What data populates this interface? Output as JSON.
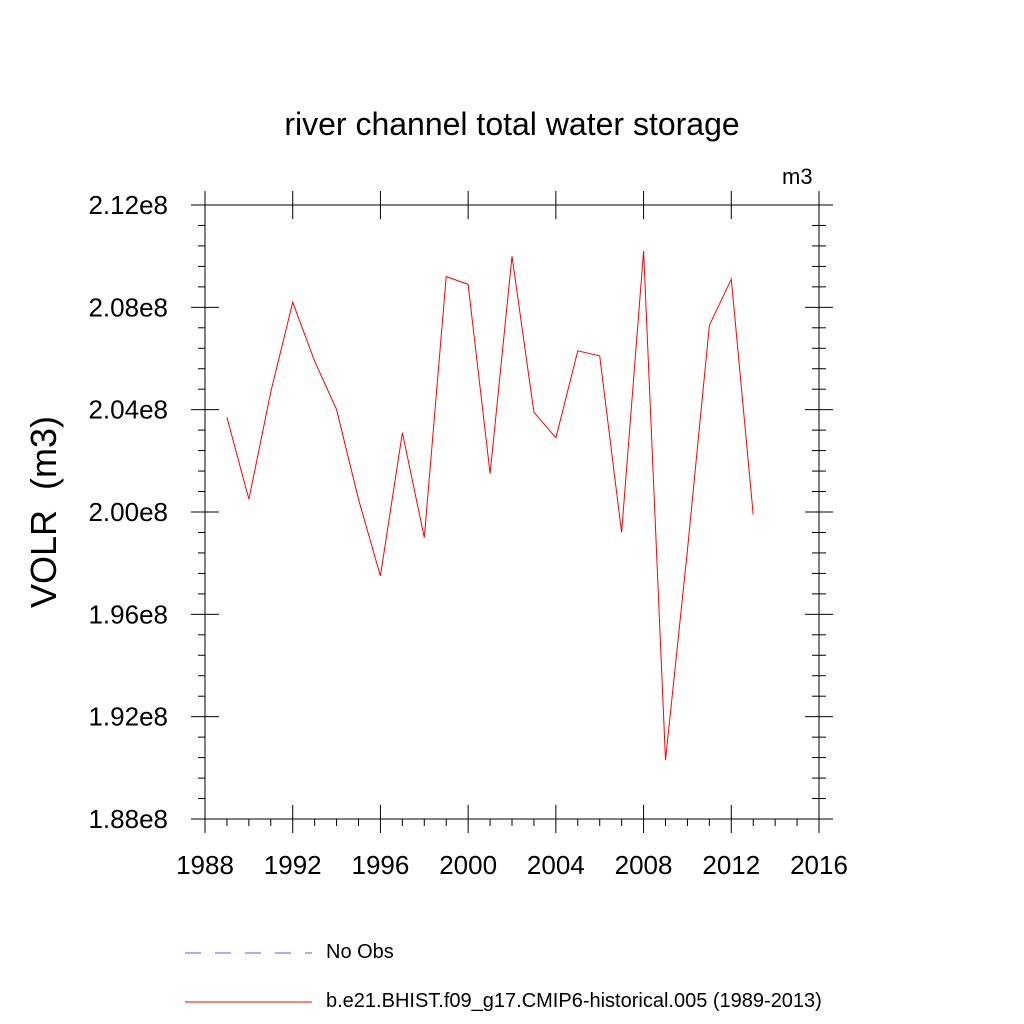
{
  "chart_data": {
    "type": "line",
    "title": "river channel total water storage",
    "units_label": "m3",
    "ylabel": "VOLR  (m3)",
    "xlabel": "",
    "xlim": [
      1988,
      2016
    ],
    "ylim": [
      188000000.0,
      212000000.0
    ],
    "x_ticks": [
      1988,
      1992,
      1996,
      2000,
      2004,
      2008,
      2012,
      2016
    ],
    "x_tick_labels": [
      "1988",
      "1992",
      "1996",
      "2000",
      "2004",
      "2008",
      "2012",
      "2016"
    ],
    "y_ticks": [
      188000000.0,
      192000000.0,
      196000000.0,
      200000000.0,
      204000000.0,
      208000000.0,
      212000000.0
    ],
    "y_tick_labels": [
      "1.88e8",
      "1.92e8",
      "1.96e8",
      "2.00e8",
      "2.04e8",
      "2.08e8",
      "2.12e8"
    ],
    "grid": false,
    "series": [
      {
        "name": "b.e21.BHIST.f09_g17.CMIP6-historical.005 (1989-2013)",
        "color": "#ff0000",
        "style": "solid",
        "x": [
          1989,
          1990,
          1991,
          1992,
          1993,
          1994,
          1995,
          1996,
          1997,
          1998,
          1999,
          2000,
          2001,
          2002,
          2003,
          2004,
          2005,
          2006,
          2007,
          2008,
          2009,
          2010,
          2011,
          2012,
          2013
        ],
        "values": [
          203700000.0,
          200500000.0,
          204700000.0,
          208200000.0,
          205900000.0,
          204000000.0,
          200500000.0,
          197500000.0,
          203100000.0,
          199000000.0,
          209200000.0,
          208900000.0,
          201500000.0,
          210000000.0,
          203900000.0,
          202900000.0,
          206300000.0,
          206100000.0,
          199200000.0,
          210200000.0,
          190300000.0,
          198500000.0,
          207300000.0,
          209100000.0,
          199900000.0
        ]
      }
    ],
    "legend": [
      {
        "label": "No Obs",
        "color": "#6a5acd",
        "style": "dashed"
      },
      {
        "label": "b.e21.BHIST.f09_g17.CMIP6-historical.005 (1989-2013)",
        "color": "#ff0000",
        "style": "solid"
      }
    ]
  }
}
